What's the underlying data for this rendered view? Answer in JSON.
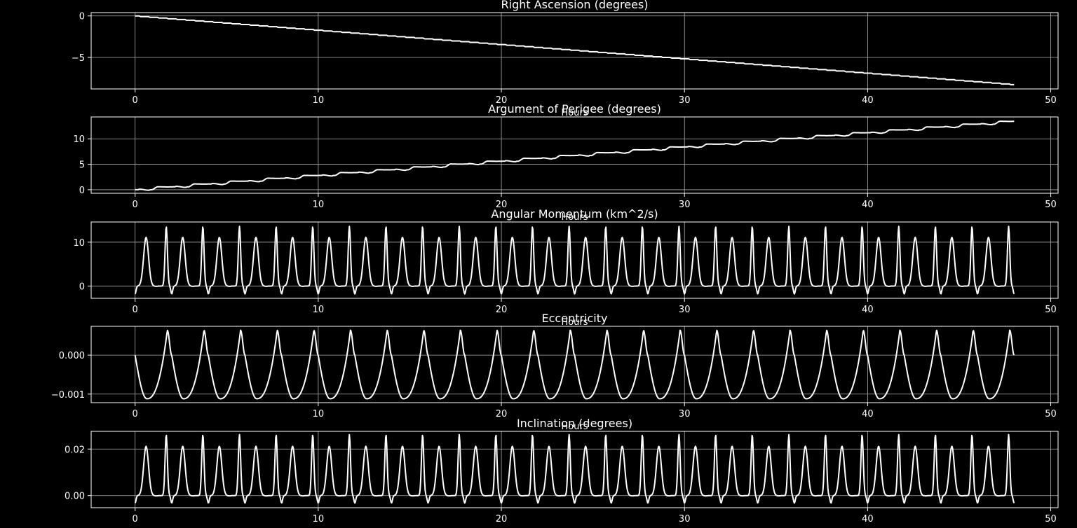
{
  "figure": {
    "background": "#000000",
    "foreground": "#ffffff",
    "grid_color": "#b0b0b0"
  },
  "chart_data": [
    {
      "type": "line",
      "title": "Right Ascension (degrees)",
      "xlabel": "Hours",
      "ylabel": "",
      "xlim": [
        -2.4,
        50.4
      ],
      "ylim": [
        -8.8,
        0.4
      ],
      "xticks": [
        0,
        10,
        20,
        30,
        40,
        50
      ],
      "xtick_labels": [
        "0",
        "10",
        "20",
        "30",
        "40",
        "50"
      ],
      "yticks": [
        0,
        -5
      ],
      "ytick_labels": [
        "0",
        "−5"
      ],
      "grid": true,
      "legend": "none",
      "series": [
        {
          "color": "#ffffff",
          "model": {
            "kind": "staircase",
            "x_start": 0,
            "x_end": 48,
            "start": 0,
            "rate": -0.1725,
            "step_period": 0.5
          }
        }
      ]
    },
    {
      "type": "line",
      "title": "Argument of Perigee (degrees)",
      "xlabel": "Hours",
      "ylabel": "",
      "xlim": [
        -2.4,
        50.4
      ],
      "ylim": [
        -0.7,
        14.3
      ],
      "xticks": [
        0,
        10,
        20,
        30,
        40,
        50
      ],
      "xtick_labels": [
        "0",
        "10",
        "20",
        "30",
        "40",
        "50"
      ],
      "yticks": [
        0,
        5,
        10
      ],
      "ytick_labels": [
        "0",
        "5",
        "10"
      ],
      "grid": true,
      "legend": "none",
      "series": [
        {
          "color": "#ffffff",
          "model": {
            "kind": "staircase",
            "x_start": 0,
            "x_end": 48,
            "start": 0,
            "rate": 0.28,
            "step_period": 2.0
          }
        }
      ]
    },
    {
      "type": "line",
      "title": "Angular Momentum (km^2/s)",
      "xlabel": "Hours",
      "ylabel": "",
      "xlim": [
        -2.4,
        50.4
      ],
      "ylim": [
        -2.8,
        14.6
      ],
      "xticks": [
        0,
        10,
        20,
        30,
        40,
        50
      ],
      "xtick_labels": [
        "0",
        "10",
        "20",
        "30",
        "40",
        "50"
      ],
      "yticks": [
        0,
        10
      ],
      "ytick_labels": [
        "0",
        "10"
      ],
      "grid": true,
      "legend": "none",
      "series": [
        {
          "color": "#ffffff",
          "model": {
            "kind": "oscillation",
            "x_start": 0,
            "x_end": 48,
            "period": 2.0,
            "min": -1.8,
            "peak_major": 13.6,
            "peak_minor": 11.1,
            "baseline": 0.0
          }
        }
      ]
    },
    {
      "type": "line",
      "title": "Eccentricity",
      "xlabel": "Hours",
      "ylabel": "",
      "xlim": [
        -2.4,
        50.4
      ],
      "ylim": [
        -0.00122,
        0.00074
      ],
      "xticks": [
        0,
        10,
        20,
        30,
        40,
        50
      ],
      "xtick_labels": [
        "0",
        "10",
        "20",
        "30",
        "40",
        "50"
      ],
      "yticks": [
        0,
        -0.001
      ],
      "ytick_labels": [
        "0.000",
        "−0.001"
      ],
      "grid": true,
      "legend": "none",
      "series": [
        {
          "color": "#ffffff",
          "model": {
            "kind": "sawtooth",
            "x_start": 0,
            "x_end": 48,
            "period": 2.0,
            "min": -0.00112,
            "max": 0.00064,
            "start": 0.0
          }
        }
      ]
    },
    {
      "type": "line",
      "title": "Inclination (degrees)",
      "xlabel": "Hours",
      "ylabel": "",
      "xlim": [
        -2.4,
        50.4
      ],
      "ylim": [
        -0.0052,
        0.0276
      ],
      "xticks": [
        0,
        10,
        20,
        30,
        40,
        50
      ],
      "xtick_labels": [
        "0",
        "10",
        "20",
        "30",
        "40",
        "50"
      ],
      "yticks": [
        0,
        0.02
      ],
      "ytick_labels": [
        "0.00",
        "0.02"
      ],
      "grid": true,
      "legend": "none",
      "series": [
        {
          "color": "#ffffff",
          "model": {
            "kind": "oscillation",
            "x_start": 0,
            "x_end": 48,
            "period": 2.0,
            "min": -0.0032,
            "peak_major": 0.0262,
            "peak_minor": 0.0212,
            "baseline": 0.0
          }
        }
      ]
    }
  ]
}
